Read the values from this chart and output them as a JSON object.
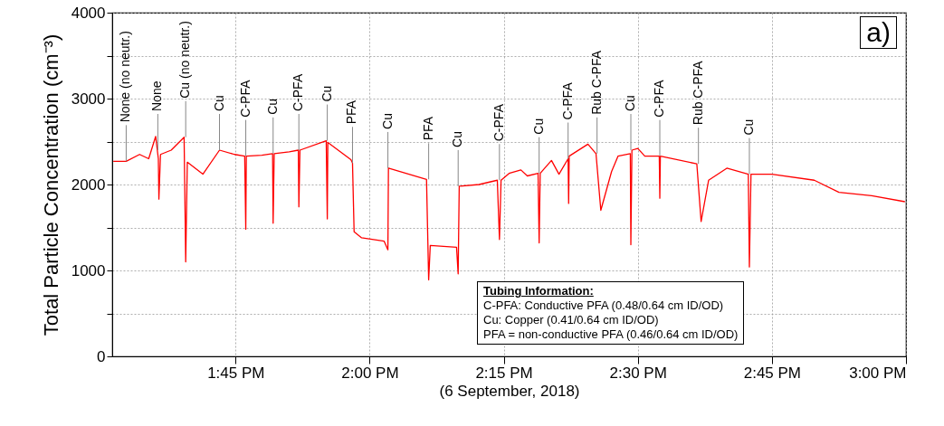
{
  "chart_data": {
    "type": "line",
    "xlabel": "(6 September, 2018)",
    "ylabel": "Total Particle Concentration (cm⁻³)",
    "x": [
      13.522,
      13.546,
      13.571,
      13.588,
      13.601,
      13.606,
      13.607,
      13.61,
      13.63,
      13.654,
      13.657,
      13.66,
      13.689,
      13.72,
      13.748,
      13.767,
      13.769,
      13.77,
      13.799,
      13.819,
      13.82,
      13.822,
      13.85,
      13.867,
      13.868,
      13.87,
      13.919,
      13.921,
      13.922,
      13.965,
      13.968,
      13.971,
      13.985,
      14.027,
      14.034,
      14.035,
      14.106,
      14.11,
      14.113,
      14.162,
      14.165,
      14.167,
      14.204,
      14.238,
      14.242,
      14.245,
      14.26,
      14.282,
      14.294,
      14.314,
      14.316,
      14.318,
      14.339,
      14.353,
      14.37,
      14.371,
      14.372,
      14.407,
      14.422,
      14.431,
      14.451,
      14.463,
      14.486,
      14.487,
      14.489,
      14.5,
      14.513,
      14.54,
      14.541,
      14.542,
      14.61,
      14.618,
      14.632,
      14.666,
      14.706,
      14.708,
      14.711,
      14.75,
      14.829,
      14.875,
      14.936,
      14.998
    ],
    "series": [
      {
        "color": "#ff0000",
        "values": [
          2270,
          2270,
          2350,
          2300,
          2560,
          2300,
          1830,
          2350,
          2400,
          2550,
          1100,
          2260,
          2120,
          2400,
          2350,
          2330,
          1480,
          2330,
          2340,
          2360,
          1550,
          2360,
          2380,
          2400,
          1740,
          2400,
          2510,
          1600,
          2490,
          2290,
          2250,
          1450,
          1380,
          1340,
          1240,
          2190,
          2060,
          890,
          1290,
          1270,
          960,
          1980,
          2000,
          2050,
          1360,
          2050,
          2130,
          2170,
          2100,
          2130,
          1320,
          2130,
          2280,
          2120,
          2300,
          1780,
          2330,
          2470,
          2360,
          1700,
          2150,
          2330,
          2360,
          1300,
          2400,
          2420,
          2330,
          2330,
          1840,
          2330,
          2240,
          1570,
          2050,
          2190,
          2120,
          1040,
          2120,
          2120,
          2050,
          1910,
          1870,
          1800
        ]
      }
    ],
    "xlim": [
      13.52,
      15
    ],
    "xticks": [
      {
        "value": 13.75,
        "label": "1:45 PM"
      },
      {
        "value": 14,
        "label": "2:00 PM"
      },
      {
        "value": 14.25,
        "label": "2:15 PM"
      },
      {
        "value": 14.5,
        "label": "2:30 PM"
      },
      {
        "value": 14.75,
        "label": "2:45 PM"
      },
      {
        "value": 15,
        "label": "3:00 PM"
      }
    ],
    "ylim": [
      0,
      4000
    ],
    "yticks": [
      0,
      {
        "value": 500,
        "label": null
      },
      1000,
      {
        "value": 1500,
        "label": null
      },
      2000,
      {
        "value": 2500,
        "label": null
      },
      3000,
      {
        "value": 3500,
        "label": null
      },
      4000
    ],
    "grid": true,
    "annotations": [
      {
        "text": "None (no neutr.)",
        "x": 13.546,
        "y": 2270
      },
      {
        "text": "None",
        "x": 13.605,
        "y": 2400
      },
      {
        "text": "Cu (no neutr.)",
        "x": 13.657,
        "y": 2550
      },
      {
        "text": "Cu",
        "x": 13.72,
        "y": 2400
      },
      {
        "text": "C-PFA",
        "x": 13.769,
        "y": 2330
      },
      {
        "text": "Cu",
        "x": 13.82,
        "y": 2360
      },
      {
        "text": "C-PFA",
        "x": 13.868,
        "y": 2400
      },
      {
        "text": "Cu",
        "x": 13.921,
        "y": 2510
      },
      {
        "text": "PFA",
        "x": 13.968,
        "y": 2250
      },
      {
        "text": "Cu",
        "x": 14.034,
        "y": 2190
      },
      {
        "text": "PFA",
        "x": 14.11,
        "y": 2060
      },
      {
        "text": "Cu",
        "x": 14.165,
        "y": 1980
      },
      {
        "text": "C-PFA",
        "x": 14.242,
        "y": 2050
      },
      {
        "text": "Cu",
        "x": 14.316,
        "y": 2130
      },
      {
        "text": "C-PFA",
        "x": 14.37,
        "y": 2300
      },
      {
        "text": "Rub C-PFA",
        "x": 14.424,
        "y": 2360
      },
      {
        "text": "Cu",
        "x": 14.487,
        "y": 2400
      },
      {
        "text": "C-PFA",
        "x": 14.541,
        "y": 2330
      },
      {
        "text": "Rub C-PFA",
        "x": 14.613,
        "y": 2240
      },
      {
        "text": "Cu",
        "x": 14.708,
        "y": 2120
      },
      "a)",
      "Tubing Information:",
      "C-PFA: Conductive PFA (0.48/0.64 cm ID/OD)",
      "Cu: Copper (0.41/0.64 cm ID/OD)",
      "PFA = non-conductive PFA (0.46/0.64 cm ID/OD)"
    ]
  }
}
